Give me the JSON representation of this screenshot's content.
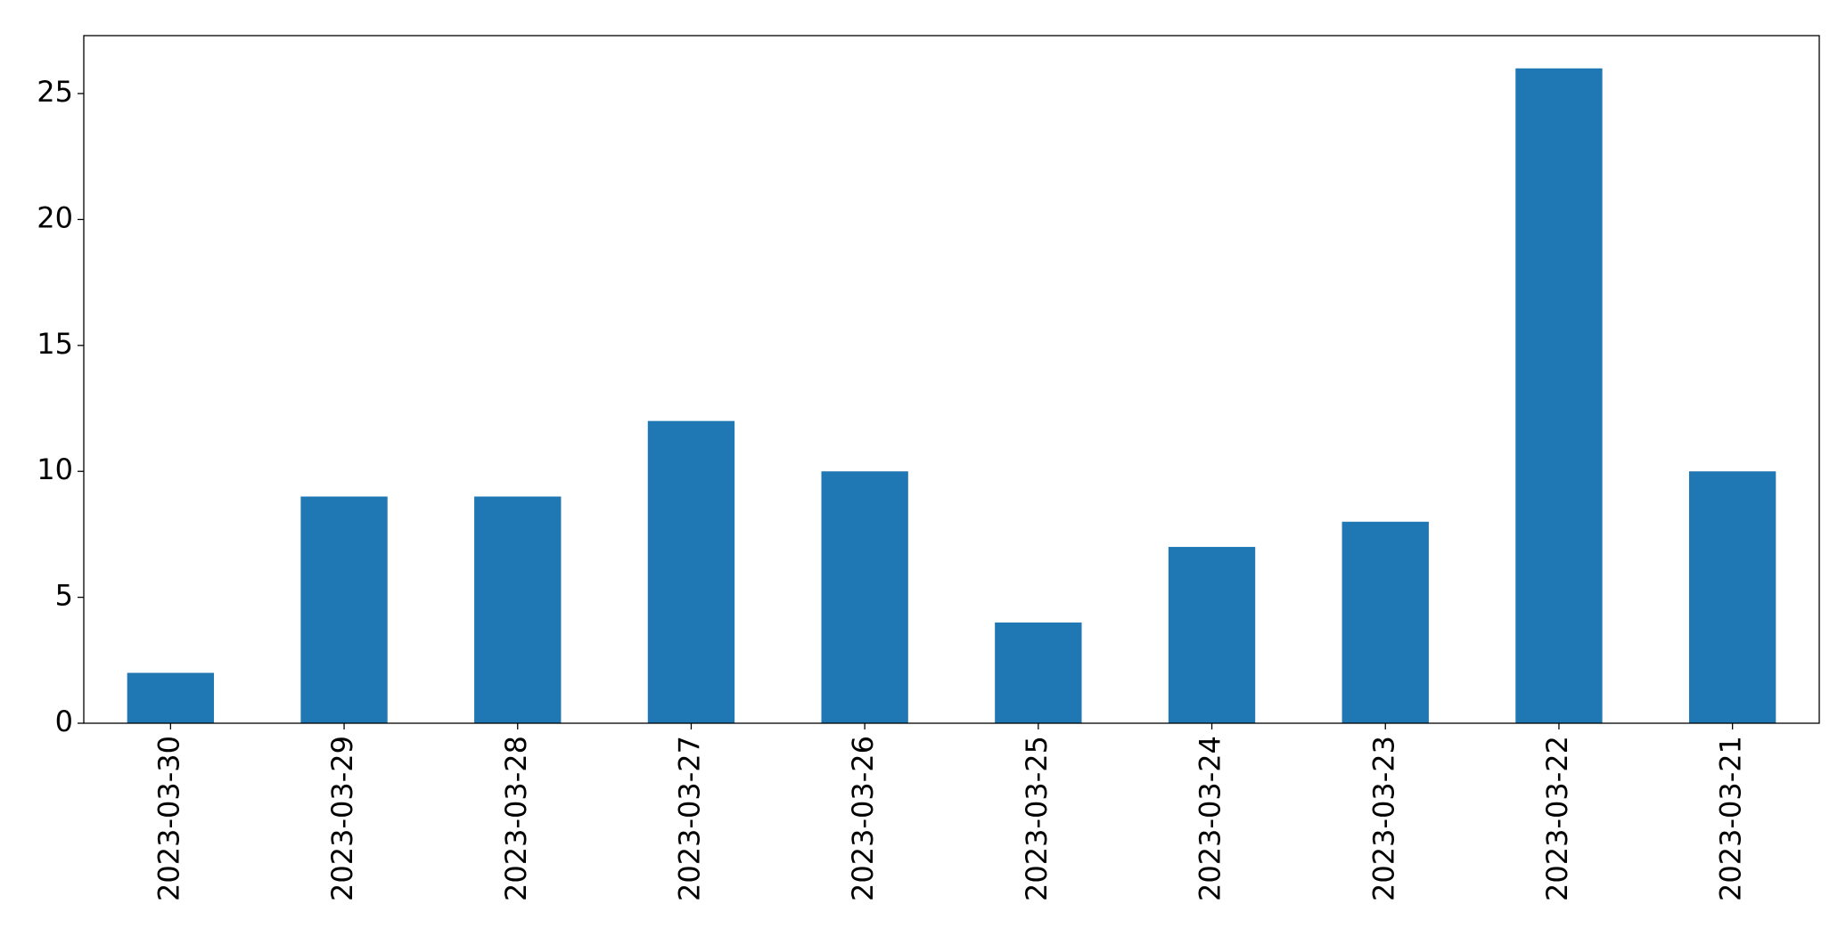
{
  "chart_data": {
    "type": "bar",
    "categories": [
      "2023-03-30",
      "2023-03-29",
      "2023-03-28",
      "2023-03-27",
      "2023-03-26",
      "2023-03-25",
      "2023-03-24",
      "2023-03-23",
      "2023-03-22",
      "2023-03-21"
    ],
    "values": [
      2,
      9,
      9,
      12,
      10,
      4,
      7,
      8,
      26,
      10
    ],
    "color": "#1f77b4",
    "ylim": [
      0,
      27.3
    ],
    "yticks": [
      0,
      5,
      10,
      15,
      20,
      25
    ],
    "grid": false
  }
}
